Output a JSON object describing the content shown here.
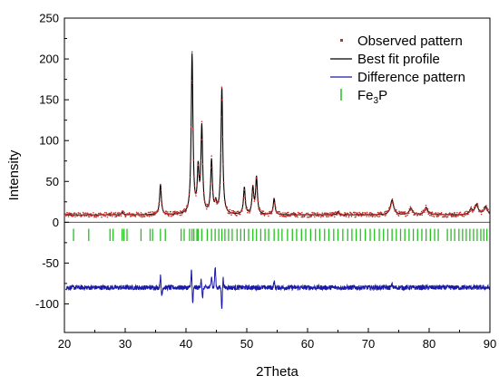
{
  "chart_data": {
    "type": "line",
    "xlabel": "2Theta",
    "ylabel": "Intensity",
    "xlim": [
      20,
      90
    ],
    "ylim": [
      -135,
      250
    ],
    "xticks": [
      20,
      30,
      40,
      50,
      60,
      70,
      80,
      90
    ],
    "yticks": [
      -100,
      -50,
      0,
      50,
      100,
      150,
      200,
      250
    ],
    "xtick_labels": [
      "20",
      "30",
      "40",
      "50",
      "60",
      "70",
      "80",
      "90"
    ],
    "ytick_labels": [
      "-100",
      "-50",
      "0",
      "50",
      "100",
      "150",
      "200",
      "250"
    ],
    "legend_placement": "top-right",
    "legend": [
      {
        "label": "Observed pattern",
        "marker": "dot",
        "color": "#c0302a"
      },
      {
        "label": "Best fit profile",
        "marker": "line",
        "color": "#000000"
      },
      {
        "label": "Difference pattern",
        "marker": "line",
        "color": "#1a1aa8"
      },
      {
        "label": "Fe",
        "label_sub": "3",
        "label_after": "P",
        "marker": "bar",
        "color": "#22c11c"
      }
    ],
    "series": [
      {
        "name": "Best fit profile",
        "role": "fit",
        "color": "#000000",
        "background": 9,
        "peaks": [
          [
            29.5,
            3
          ],
          [
            35.8,
            37
          ],
          [
            41.0,
            195
          ],
          [
            42.0,
            52
          ],
          [
            42.6,
            105
          ],
          [
            44.2,
            65
          ],
          [
            44.9,
            12
          ],
          [
            45.9,
            155
          ],
          [
            49.6,
            33
          ],
          [
            51.0,
            32
          ],
          [
            51.6,
            45
          ],
          [
            54.5,
            20
          ],
          [
            65.0,
            4
          ],
          [
            73.9,
            18
          ],
          [
            77.0,
            8
          ],
          [
            79.5,
            9
          ],
          [
            86.9,
            6
          ],
          [
            87.8,
            12
          ],
          [
            89.3,
            10
          ]
        ]
      },
      {
        "name": "Observed pattern",
        "role": "observed",
        "color": "#c0302a",
        "noise": 3
      },
      {
        "name": "Difference pattern",
        "role": "difference",
        "color": "#1a1aa8",
        "offset": -80,
        "noise": 3,
        "spikes": [
          [
            35.8,
            14
          ],
          [
            36.0,
            -10
          ],
          [
            40.9,
            22
          ],
          [
            41.1,
            -20
          ],
          [
            42.5,
            12
          ],
          [
            42.7,
            -14
          ],
          [
            44.2,
            15
          ],
          [
            44.8,
            25
          ],
          [
            45.9,
            -25
          ],
          [
            46.1,
            12
          ],
          [
            54.5,
            7
          ],
          [
            73.9,
            4
          ]
        ]
      },
      {
        "name": "Fe3P",
        "role": "reflections",
        "color": "#22c11c",
        "y_top": -8,
        "y_bottom": -23,
        "positions": [
          21.5,
          24.0,
          27.5,
          28.0,
          29.5,
          29.8,
          30.3,
          32.6,
          34.1,
          34.5,
          35.8,
          36.6,
          39.2,
          39.7,
          40.6,
          41.0,
          41.3,
          41.8,
          42.0,
          42.6,
          43.5,
          44.2,
          44.8,
          45.4,
          45.9,
          46.4,
          47.0,
          47.6,
          48.4,
          49.0,
          49.6,
          50.3,
          51.0,
          51.6,
          52.3,
          53.0,
          53.6,
          54.5,
          55.2,
          55.8,
          56.7,
          57.5,
          58.2,
          59.0,
          59.7,
          60.5,
          61.3,
          62.0,
          62.8,
          63.5,
          64.3,
          65.0,
          65.8,
          66.6,
          67.3,
          68.0,
          68.7,
          69.5,
          70.3,
          71.0,
          71.8,
          72.5,
          73.2,
          73.9,
          74.6,
          75.3,
          76.0,
          76.7,
          77.4,
          78.1,
          78.8,
          79.5,
          80.2,
          80.9,
          81.5,
          83.0,
          83.6,
          84.2,
          84.9,
          85.5,
          86.1,
          86.7,
          87.3,
          87.9,
          88.5,
          89.0,
          89.5
        ]
      }
    ]
  }
}
